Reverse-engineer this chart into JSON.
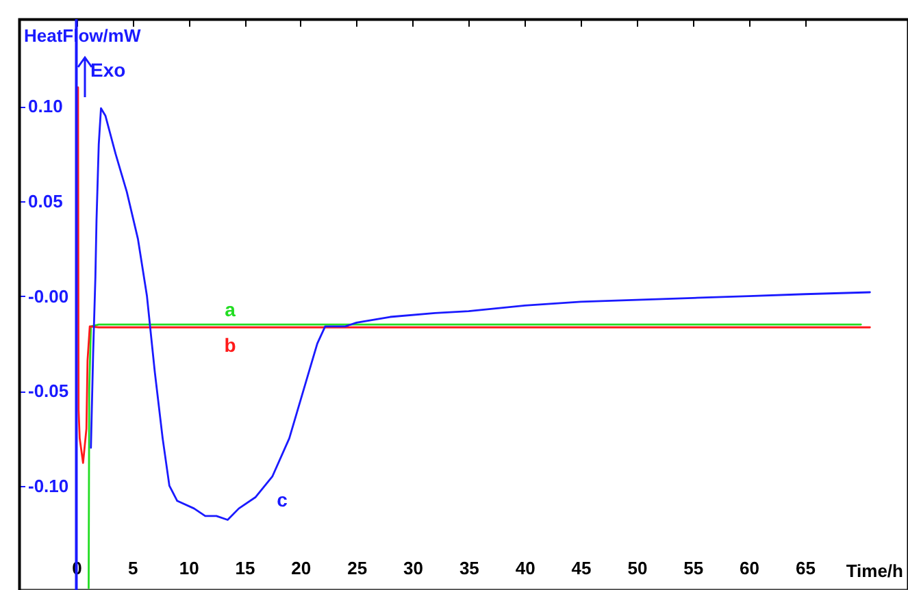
{
  "chart_data": {
    "type": "line",
    "xlabel": "Time/h",
    "ylabel": "HeatFlow/mW",
    "xlim": [
      -5.1,
      74.2
    ],
    "ylim": [
      -0.155,
      0.146
    ],
    "xticks": [
      0,
      5,
      10,
      15,
      20,
      25,
      30,
      35,
      40,
      45,
      50,
      55,
      60,
      65
    ],
    "yticks": [
      {
        "value": 0.1,
        "label": "0.10"
      },
      0.05,
      {
        "value": 0,
        "label": "-0.00"
      },
      -0.05,
      {
        "value": -0.1,
        "label": "-0.10"
      }
    ],
    "grid": false,
    "marker": "none",
    "line_style": "solid",
    "ref_lines": [
      {
        "axis": "x",
        "value": 0,
        "label": null,
        "color": "#1a1aff"
      }
    ],
    "series": [
      {
        "color": "#22dd22",
        "x": [
          1.1,
          1.15,
          1.3,
          2,
          10,
          20,
          30,
          40,
          50,
          60,
          70
        ],
        "values": [
          -0.154,
          -0.05,
          -0.016,
          -0.015,
          -0.015,
          -0.015,
          -0.015,
          -0.015,
          -0.015,
          -0.015,
          -0.015
        ]
      },
      {
        "color": "#ff1a1a",
        "x": [
          0.15,
          0.2,
          0.3,
          0.6,
          0.9,
          1.0,
          1.2,
          2,
          10,
          20,
          30,
          40,
          50,
          60,
          70.8
        ],
        "values": [
          0.11,
          -0.06,
          -0.075,
          -0.088,
          -0.07,
          -0.034,
          -0.016,
          -0.0165,
          -0.0165,
          -0.0165,
          -0.0165,
          -0.0165,
          -0.0165,
          -0.0165,
          -0.0165
        ]
      },
      {
        "color": "#1a1aff",
        "x": [
          1.3,
          1.5,
          1.7,
          1.8,
          2.0,
          2.2,
          2.6,
          3.5,
          4.5,
          5.5,
          6.3,
          7.0,
          7.7,
          8.3,
          9.0,
          10.5,
          11.5,
          12.5,
          13.5,
          14.5,
          16,
          17.5,
          19,
          20.5,
          21.5,
          22.2,
          24,
          25,
          28,
          32,
          35,
          40,
          45,
          50,
          55,
          60,
          65,
          70.8
        ],
        "values": [
          -0.08,
          -0.03,
          0.01,
          0.04,
          0.08,
          0.099,
          0.095,
          0.075,
          0.055,
          0.03,
          0.0,
          -0.04,
          -0.075,
          -0.1,
          -0.108,
          -0.112,
          -0.116,
          -0.116,
          -0.118,
          -0.112,
          -0.106,
          -0.095,
          -0.075,
          -0.045,
          -0.025,
          -0.016,
          -0.016,
          -0.014,
          -0.011,
          -0.009,
          -0.008,
          -0.005,
          -0.003,
          -0.002,
          -0.001,
          0.0,
          0.001,
          0.002
        ]
      }
    ],
    "annotations": [
      "a",
      "b",
      "c",
      "Exo"
    ]
  }
}
